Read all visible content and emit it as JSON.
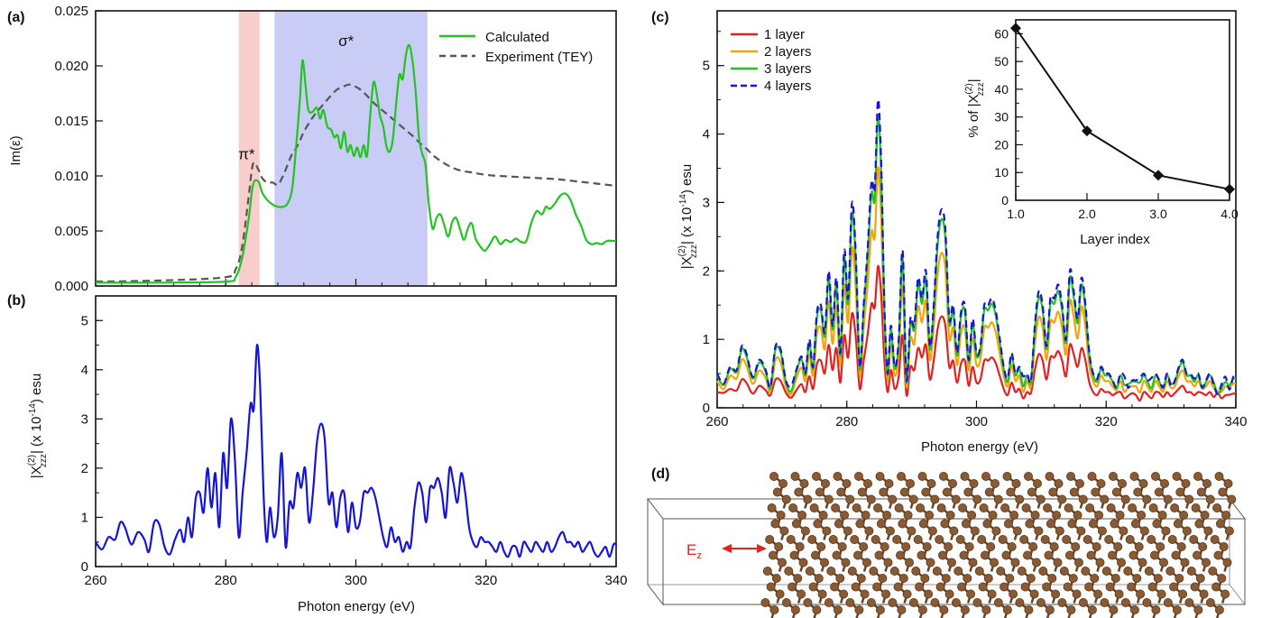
{
  "chart_data": [
    {
      "id": "a",
      "type": "line",
      "panel_label": "(a)",
      "xlim": [
        260,
        340
      ],
      "ylim": [
        0,
        0.025
      ],
      "ylabel": "Im(ε)",
      "xlabel": "",
      "x_ticks": [
        260,
        280,
        300,
        320,
        340
      ],
      "y_ticks": [
        0.0,
        0.005,
        0.01,
        0.015,
        0.02,
        0.025
      ],
      "y_tick_labels": [
        "0.000",
        "0.005",
        "0.010",
        "0.015",
        "0.020",
        "0.025"
      ],
      "legend_position": "top-right",
      "shaded_regions": [
        {
          "x0": 282,
          "x1": 285.2,
          "color": "#f9cdcb",
          "label": "π*"
        },
        {
          "x0": 287.5,
          "x1": 311,
          "color": "#c9ccf5",
          "label": "σ*"
        }
      ],
      "annotations": [
        {
          "text": "π*",
          "x": 283.2,
          "y": 0.0115
        },
        {
          "text": "σ*",
          "x": 298.5,
          "y": 0.0218
        }
      ],
      "series": [
        {
          "name": "Calculated",
          "color": "#22c322",
          "style": "solid",
          "x": [
            260,
            270,
            280,
            281.5,
            282.5,
            283.5,
            284.2,
            285,
            285.6,
            286.4,
            287.2,
            288,
            288.8,
            289.5,
            290.2,
            290.8,
            291.4,
            291.8,
            292.3,
            292.7,
            293.3,
            294,
            294.5,
            295,
            295.6,
            296.2,
            296.7,
            297.2,
            297.7,
            298.2,
            298.7,
            299.2,
            299.7,
            300.2,
            300.7,
            301.2,
            301.7,
            302.2,
            302.7,
            303.2,
            303.7,
            304.2,
            304.7,
            305.2,
            305.7,
            306.2,
            306.7,
            307.2,
            307.7,
            308.2,
            308.7,
            309.2,
            309.7,
            310.2,
            310.7,
            311.2,
            311.8,
            312.4,
            313,
            313.6,
            314.2,
            314.8,
            315.4,
            316,
            316.6,
            317.2,
            317.8,
            318.4,
            319,
            319.8,
            320.6,
            321.4,
            322.2,
            323,
            323.8,
            324.6,
            325.4,
            326.2,
            327,
            327.8,
            328.6,
            329.2,
            329.8,
            330.6,
            331.4,
            332.2,
            333,
            333.8,
            334.6,
            335.4,
            336.2,
            337,
            337.8,
            338.6,
            339.4,
            340
          ],
          "y": [
            0.0003,
            0.0003,
            0.0004,
            0.0008,
            0.0025,
            0.006,
            0.0092,
            0.0095,
            0.0085,
            0.0078,
            0.0074,
            0.0072,
            0.0072,
            0.0075,
            0.0088,
            0.0125,
            0.017,
            0.0205,
            0.018,
            0.016,
            0.0158,
            0.0162,
            0.0152,
            0.016,
            0.0145,
            0.0142,
            0.0135,
            0.0137,
            0.0125,
            0.014,
            0.0122,
            0.0128,
            0.0118,
            0.0126,
            0.0117,
            0.0128,
            0.0118,
            0.0155,
            0.0185,
            0.0175,
            0.0155,
            0.0145,
            0.0127,
            0.0122,
            0.0134,
            0.0166,
            0.0192,
            0.0188,
            0.021,
            0.0219,
            0.0205,
            0.0175,
            0.0135,
            0.012,
            0.011,
            0.0075,
            0.0052,
            0.0062,
            0.0065,
            0.0055,
            0.0045,
            0.0058,
            0.0062,
            0.0052,
            0.0042,
            0.0052,
            0.0057,
            0.0043,
            0.0037,
            0.0032,
            0.0038,
            0.0045,
            0.0038,
            0.0042,
            0.004,
            0.0043,
            0.004,
            0.0041,
            0.0058,
            0.0068,
            0.0065,
            0.0072,
            0.007,
            0.0075,
            0.0082,
            0.0084,
            0.0078,
            0.0065,
            0.0055,
            0.0042,
            0.0038,
            0.0039,
            0.0038,
            0.0041,
            0.0041,
            0.0041
          ]
        },
        {
          "name": "Experiment (TEY)",
          "color": "#555555",
          "style": "dashed",
          "x": [
            260,
            270,
            280,
            281.5,
            282.5,
            283.5,
            284.2,
            285,
            285.6,
            286.4,
            287.2,
            288,
            288.8,
            289.5,
            290.2,
            290.8,
            291.4,
            292,
            293,
            294,
            295,
            296,
            297,
            298,
            299,
            300,
            301,
            302,
            303,
            304,
            305,
            306,
            307,
            308,
            309,
            310,
            311,
            312,
            314,
            316,
            318,
            320,
            322,
            325,
            328,
            331,
            334,
            337,
            340
          ],
          "y": [
            0.0004,
            0.0005,
            0.0008,
            0.0015,
            0.0035,
            0.008,
            0.0111,
            0.0106,
            0.0098,
            0.0094,
            0.0094,
            0.0092,
            0.01,
            0.011,
            0.012,
            0.0125,
            0.0132,
            0.014,
            0.015,
            0.0158,
            0.0165,
            0.0172,
            0.0178,
            0.0181,
            0.0183,
            0.0181,
            0.0177,
            0.0171,
            0.0165,
            0.016,
            0.0155,
            0.015,
            0.0145,
            0.014,
            0.0135,
            0.0129,
            0.0124,
            0.0118,
            0.011,
            0.0105,
            0.0103,
            0.0101,
            0.01,
            0.0099,
            0.0098,
            0.0097,
            0.0095,
            0.0093,
            0.0091
          ]
        }
      ]
    },
    {
      "id": "b",
      "type": "line",
      "panel_label": "(b)",
      "xlim": [
        260,
        340
      ],
      "ylim": [
        0,
        5.5
      ],
      "xlabel": "Photon energy (eV)",
      "ylabel": "|Χ(2)zzz| (x 10-14) esu",
      "x_ticks": [
        260,
        280,
        300,
        320,
        340
      ],
      "y_ticks": [
        0,
        1,
        2,
        3,
        4,
        5
      ],
      "series": [
        {
          "name": "",
          "color": "#1515d8",
          "style": "solid",
          "x": [
            260,
            261,
            262,
            263,
            263.8,
            264.5,
            265.5,
            266.5,
            267.5,
            268.2,
            269,
            269.8,
            270.6,
            271.4,
            272.2,
            273,
            273.6,
            274.2,
            274.8,
            275.4,
            276,
            276.6,
            277.2,
            277.8,
            278.4,
            279,
            279.6,
            280.2,
            280.8,
            281.4,
            282,
            282.6,
            283.2,
            283.8,
            284.3,
            284.8,
            285.3,
            285.8,
            286.3,
            286.8,
            287.4,
            288,
            288.6,
            289.2,
            289.8,
            290.4,
            291,
            291.6,
            292.2,
            292.8,
            293.4,
            294,
            294.6,
            295.2,
            295.8,
            296.4,
            297,
            297.6,
            298.2,
            298.8,
            299.4,
            300,
            300.6,
            301.2,
            301.8,
            302.4,
            303,
            303.6,
            304.2,
            304.8,
            305.4,
            306,
            306.6,
            307.2,
            307.8,
            308.4,
            309,
            309.6,
            310.2,
            310.8,
            311.4,
            312,
            312.6,
            313.2,
            313.8,
            314.4,
            315,
            315.6,
            316.2,
            316.8,
            317.4,
            318,
            318.6,
            319.2,
            319.8,
            320.4,
            321,
            321.6,
            322.2,
            322.8,
            323.4,
            324,
            324.6,
            325.2,
            325.8,
            326.4,
            327,
            327.6,
            328.2,
            328.8,
            329.4,
            330,
            330.6,
            331.2,
            331.8,
            332.4,
            333,
            333.6,
            334.2,
            334.8,
            335.4,
            336,
            336.6,
            337.2,
            337.8,
            338.4,
            339,
            339.6,
            340
          ],
          "y": [
            0.5,
            0.35,
            0.6,
            0.55,
            0.9,
            0.8,
            0.45,
            0.7,
            0.55,
            0.3,
            0.9,
            0.85,
            0.4,
            0.25,
            0.55,
            0.75,
            0.5,
            1.0,
            0.6,
            1.4,
            1.5,
            1.1,
            2.0,
            1.2,
            1.9,
            0.8,
            2.3,
            1.6,
            3.0,
            2.2,
            0.6,
            1.5,
            2.3,
            3.3,
            3.2,
            4.5,
            3.6,
            1.5,
            0.5,
            1.2,
            0.6,
            1.0,
            2.3,
            0.4,
            1.3,
            1.2,
            1.9,
            1.6,
            2.0,
            0.9,
            1.5,
            2.5,
            2.9,
            2.6,
            1.3,
            1.5,
            0.8,
            1.4,
            1.5,
            0.7,
            1.3,
            0.8,
            0.9,
            1.5,
            1.5,
            1.6,
            1.4,
            1.0,
            0.6,
            0.4,
            0.8,
            0.5,
            0.6,
            0.3,
            0.5,
            0.4,
            1.2,
            1.7,
            1.5,
            0.9,
            1.6,
            1.6,
            1.8,
            1.5,
            1.0,
            2.0,
            1.7,
            1.3,
            1.9,
            1.5,
            0.8,
            0.5,
            0.4,
            0.6,
            0.5,
            0.5,
            0.4,
            0.3,
            0.5,
            0.3,
            0.2,
            0.4,
            0.4,
            0.2,
            0.5,
            0.4,
            0.3,
            0.5,
            0.4,
            0.3,
            0.5,
            0.3,
            0.4,
            0.6,
            0.7,
            0.5,
            0.5,
            0.4,
            0.5,
            0.3,
            0.4,
            0.5,
            0.3,
            0.2,
            0.3,
            0.4,
            0.2,
            0.45,
            0.45
          ]
        }
      ]
    },
    {
      "id": "c",
      "type": "line",
      "panel_label": "(c)",
      "xlim": [
        260,
        340
      ],
      "ylim": [
        0,
        5.8
      ],
      "xlabel": "Photon energy (eV)",
      "ylabel": "|Χ(2)zzz| (x 10-14) esu",
      "x_ticks": [
        260,
        280,
        300,
        320,
        340
      ],
      "y_ticks": [
        0,
        1,
        2,
        3,
        4,
        5
      ],
      "legend_position": "top-left",
      "series": [
        {
          "name": "1 layer",
          "color": "#e22121",
          "style": "solid"
        },
        {
          "name": "2 layers",
          "color": "#f5a30a",
          "style": "solid"
        },
        {
          "name": "3 layers",
          "color": "#22c322",
          "style": "solid"
        },
        {
          "name": "4 layers",
          "color": "#1515d8",
          "style": "dashed"
        }
      ],
      "series_scale": [
        0.46,
        0.78,
        0.95,
        1.0
      ]
    },
    {
      "id": "c-inset",
      "type": "line",
      "xlim": [
        1.0,
        4.0
      ],
      "ylim": [
        0,
        65
      ],
      "xlabel": "Layer index",
      "ylabel": "% of |Χ(2)zzz|",
      "x_ticks": [
        1.0,
        2.0,
        3.0,
        4.0
      ],
      "x_tick_labels": [
        "1.0",
        "2.0",
        "3.0",
        "4.0"
      ],
      "y_ticks": [
        0,
        10,
        20,
        30,
        40,
        50,
        60
      ],
      "series": [
        {
          "name": "",
          "color": "#111111",
          "marker": "diamond",
          "x": [
            1,
            2,
            3,
            4
          ],
          "y": [
            62,
            25,
            9,
            4
          ]
        }
      ]
    }
  ],
  "panel_d": {
    "label": "(d)",
    "field_label": "E",
    "field_subscript": "z",
    "arrow_color": "#e22121",
    "atom_color": "#8a5a32"
  },
  "text": {
    "superscript_2": "(2)",
    "subscript_zzz": "zzz",
    "ylabel_chi_prefix": "|Χ",
    "ylabel_chi_suffix": "| (x 10",
    "exp_minus_14": "-14",
    "ylabel_esu": ") esu",
    "inset_ylabel_prefix": "% of |Χ",
    "inset_ylabel_suffix": "|"
  }
}
